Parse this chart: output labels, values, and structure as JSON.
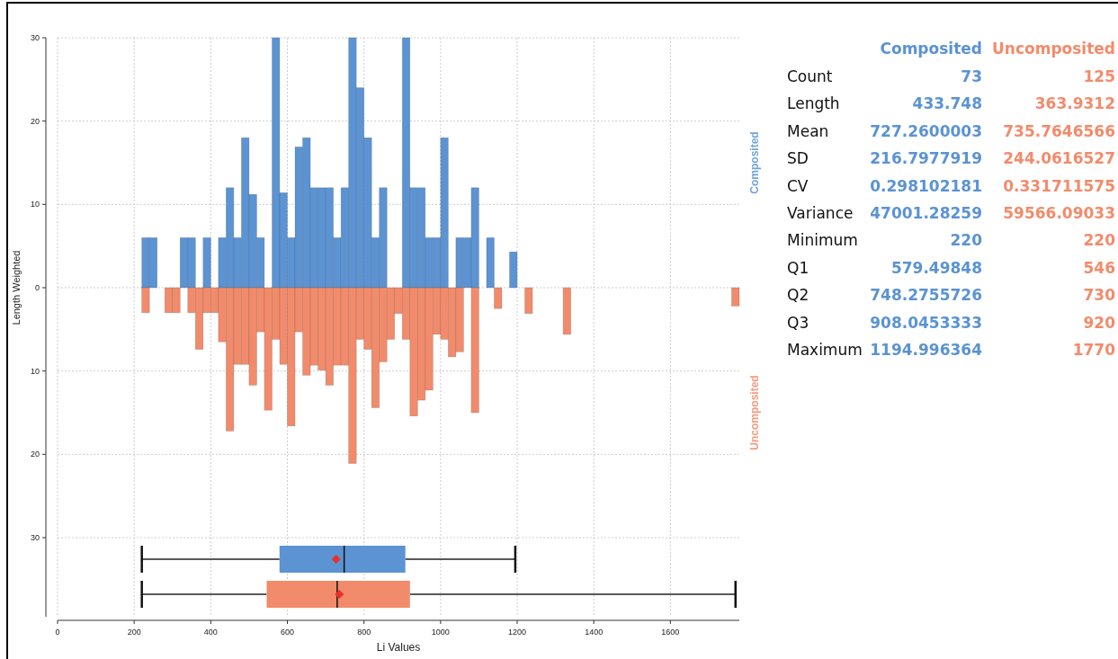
{
  "chart_data": [
    {
      "type": "histogram",
      "ylabel": "Length Weighted",
      "xlim": [
        0,
        1780
      ],
      "ylim": [
        -30,
        30
      ],
      "yticks": [
        {
          "value": -30,
          "label": "30"
        },
        {
          "value": -20,
          "label": "20"
        },
        {
          "value": -10,
          "label": "10"
        },
        0,
        10,
        20,
        30
      ],
      "grid": true,
      "tick_labels": "y",
      "bins": [
        220,
        240,
        260,
        280,
        300,
        320,
        340,
        360,
        380,
        400,
        420,
        440,
        460,
        480,
        500,
        520,
        540,
        560,
        580,
        600,
        620,
        640,
        660,
        680,
        700,
        720,
        740,
        760,
        780,
        800,
        820,
        840,
        860,
        880,
        900,
        920,
        940,
        960,
        980,
        1000,
        1020,
        1040,
        1060,
        1080,
        1100,
        1120,
        1140,
        1160,
        1180,
        1200,
        1220,
        1240,
        1260,
        1280,
        1300,
        1320,
        1340,
        1360,
        1380,
        1400,
        1420,
        1440,
        1460,
        1480,
        1500,
        1520,
        1540,
        1560,
        1580,
        1600,
        1620,
        1640,
        1660,
        1680,
        1700,
        1720,
        1740,
        1760,
        1780
      ],
      "series": [
        {
          "name": "Composited",
          "color": "#5b93d3",
          "values": [
            6,
            6,
            0,
            0,
            0,
            6,
            6,
            0,
            6,
            0,
            6,
            12,
            6,
            18,
            11.2,
            6,
            0,
            30,
            11.4,
            6,
            16.9,
            18,
            12,
            12,
            12,
            6,
            12,
            30,
            24,
            18,
            6,
            12,
            0,
            0,
            30,
            12,
            12,
            6,
            6,
            18,
            0,
            6,
            6,
            12,
            0,
            6,
            0,
            0,
            4.3,
            0,
            0,
            0,
            0,
            0,
            0,
            0,
            0,
            0,
            0,
            0,
            0,
            0,
            0,
            0,
            0,
            0,
            0,
            0,
            0,
            0,
            0,
            0,
            0,
            0,
            0,
            0,
            0,
            0
          ]
        },
        {
          "name": "Uncomposited",
          "color": "#f28b6b",
          "values": [
            -3,
            0,
            0,
            -3,
            -3,
            0,
            -3,
            -7.4,
            -3,
            -3,
            -6.5,
            -17.2,
            -9.2,
            -9.2,
            -11.7,
            -5.3,
            -14.7,
            -6.2,
            -9.2,
            -16.6,
            -5.3,
            -10.5,
            -9.3,
            -9.9,
            -11.7,
            -9.3,
            -9.3,
            -21.1,
            -6.2,
            -7.4,
            -14.4,
            -8.9,
            -6.2,
            -3.1,
            -6.2,
            -15.4,
            -13.5,
            -12.3,
            -5.6,
            -6.2,
            -8.3,
            -7.7,
            0,
            -15,
            0,
            0,
            -2.5,
            0,
            0,
            0,
            -3.1,
            0,
            0,
            0,
            0,
            -5.6,
            0,
            0,
            0,
            0,
            0,
            0,
            0,
            0,
            0,
            0,
            0,
            0,
            0,
            0,
            0,
            0,
            0,
            0,
            0,
            0,
            0,
            -2.2
          ]
        }
      ]
    },
    {
      "type": "box",
      "orientation": "horizontal",
      "categories": [
        null,
        null
      ],
      "xlabel": "Li Values",
      "xlim": [
        0,
        1780
      ],
      "xticks": [
        0,
        200,
        400,
        600,
        800,
        1000,
        1200,
        1400,
        1600
      ],
      "grid": "x",
      "tick_labels": "x",
      "marker": "diamond",
      "colors": [
        "#5b93d3",
        "#f28b6b"
      ],
      "boxes": [
        {
          "low": 220,
          "q1": 579.49848,
          "median": 748.2755726,
          "q3": 908.0453333,
          "high": 1194.996364,
          "mean": 727.2600003
        },
        {
          "low": 220,
          "q1": 546,
          "median": 730,
          "q3": 920,
          "high": 1770,
          "mean": 735.7646566
        }
      ]
    },
    {
      "type": "other",
      "data_labels": true,
      "categories": [
        "Count",
        "Length",
        "Mean",
        "SD",
        "CV",
        "Variance",
        "Minimum",
        "Q1",
        "Q2",
        "Q3",
        "Maximum"
      ],
      "series": [
        {
          "name": "Composited",
          "color": "#5b93d3",
          "values": [
            73,
            433.748,
            727.2600003,
            216.7977919,
            0.298102181,
            47001.28259,
            220,
            579.49848,
            748.2755726,
            908.0453333,
            1194.996364
          ]
        },
        {
          "name": "Uncomposited",
          "color": "#f28b6b",
          "values": [
            125,
            363.9312,
            735.7646566,
            244.0616527,
            0.331711575,
            59566.09033,
            220,
            546,
            730,
            920,
            1770
          ]
        }
      ]
    }
  ]
}
